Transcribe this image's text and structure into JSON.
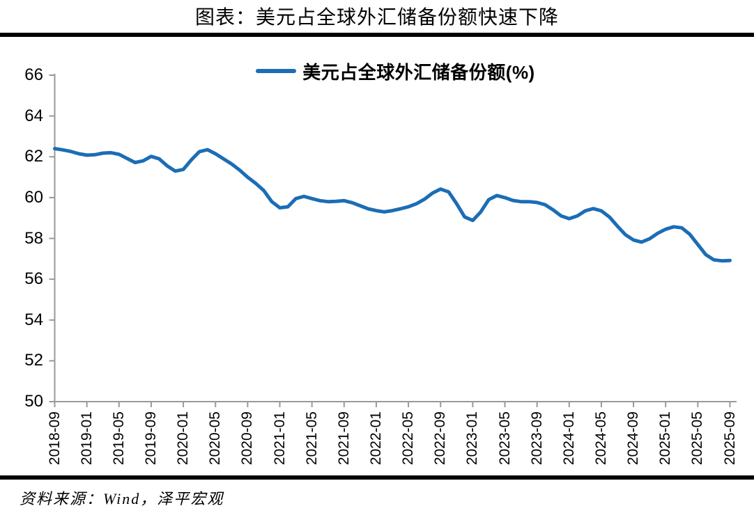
{
  "page": {
    "title": "图表：美元占全球外汇储备份额快速下降",
    "source": "资料来源：Wind，泽平宏观"
  },
  "legend": {
    "label": "美元占全球外汇储备份额(%)",
    "swatch_color": "#1B6DB5"
  },
  "colors": {
    "line": "#1B6DB5",
    "axis": "#999999",
    "text": "#000000",
    "rule": "#000000",
    "background": "#FFFFFF"
  },
  "chart_data": {
    "type": "line",
    "title": "图表：美元占全球外汇储备份额快速下降",
    "xlabel": "",
    "ylabel": "",
    "ylim": [
      50,
      66
    ],
    "y_ticks": [
      50,
      52,
      54,
      56,
      58,
      60,
      62,
      64,
      66
    ],
    "grid": false,
    "legend_position": "top-center",
    "x_tick_every": 4,
    "x_tick_labels": [
      "2018-09",
      "2019-01",
      "2019-05",
      "2019-09",
      "2020-01",
      "2020-05",
      "2020-09",
      "2021-01",
      "2021-05",
      "2021-09",
      "2022-01",
      "2022-05",
      "2022-09",
      "2023-01",
      "2023-05",
      "2023-09",
      "2024-01",
      "2024-05",
      "2024-09",
      "2025-01",
      "2025-05",
      "2025-09"
    ],
    "x": [
      "2018-09",
      "2018-10",
      "2018-11",
      "2018-12",
      "2019-01",
      "2019-02",
      "2019-03",
      "2019-04",
      "2019-05",
      "2019-06",
      "2019-07",
      "2019-08",
      "2019-09",
      "2019-10",
      "2019-11",
      "2019-12",
      "2020-01",
      "2020-02",
      "2020-03",
      "2020-04",
      "2020-05",
      "2020-06",
      "2020-07",
      "2020-08",
      "2020-09",
      "2020-10",
      "2020-11",
      "2020-12",
      "2021-01",
      "2021-02",
      "2021-03",
      "2021-04",
      "2021-05",
      "2021-06",
      "2021-07",
      "2021-08",
      "2021-09",
      "2021-10",
      "2021-11",
      "2021-12",
      "2022-01",
      "2022-02",
      "2022-03",
      "2022-04",
      "2022-05",
      "2022-06",
      "2022-07",
      "2022-08",
      "2022-09",
      "2022-10",
      "2022-11",
      "2022-12",
      "2023-01",
      "2023-02",
      "2023-03",
      "2023-04",
      "2023-05",
      "2023-06",
      "2023-07",
      "2023-08",
      "2023-09",
      "2023-10",
      "2023-11",
      "2023-12",
      "2024-01",
      "2024-02",
      "2024-03",
      "2024-04",
      "2024-05",
      "2024-06",
      "2024-07",
      "2024-08",
      "2024-09",
      "2024-10",
      "2024-11",
      "2024-12",
      "2025-01",
      "2025-02",
      "2025-03",
      "2025-04",
      "2025-05",
      "2025-06",
      "2025-07",
      "2025-08",
      "2025-09"
    ],
    "series": [
      {
        "name": "美元占全球外汇储备份额(%)",
        "color": "#1B6DB5",
        "values": [
          62.4,
          62.34,
          62.26,
          62.15,
          62.08,
          62.1,
          62.18,
          62.2,
          62.12,
          61.92,
          61.72,
          61.8,
          62.02,
          61.9,
          61.55,
          61.3,
          61.38,
          61.85,
          62.25,
          62.35,
          62.15,
          61.9,
          61.65,
          61.35,
          61.0,
          60.7,
          60.35,
          59.8,
          59.5,
          59.55,
          59.95,
          60.06,
          59.95,
          59.85,
          59.8,
          59.82,
          59.85,
          59.75,
          59.6,
          59.45,
          59.36,
          59.3,
          59.36,
          59.45,
          59.55,
          59.7,
          59.92,
          60.22,
          60.42,
          60.28,
          59.7,
          59.05,
          58.88,
          59.3,
          59.9,
          60.1,
          60.0,
          59.86,
          59.8,
          59.8,
          59.76,
          59.65,
          59.4,
          59.1,
          58.97,
          59.1,
          59.35,
          59.46,
          59.35,
          59.05,
          58.6,
          58.18,
          57.92,
          57.82,
          57.98,
          58.25,
          58.45,
          58.57,
          58.52,
          58.2,
          57.7,
          57.2,
          56.95,
          56.9,
          56.92
        ]
      }
    ]
  }
}
